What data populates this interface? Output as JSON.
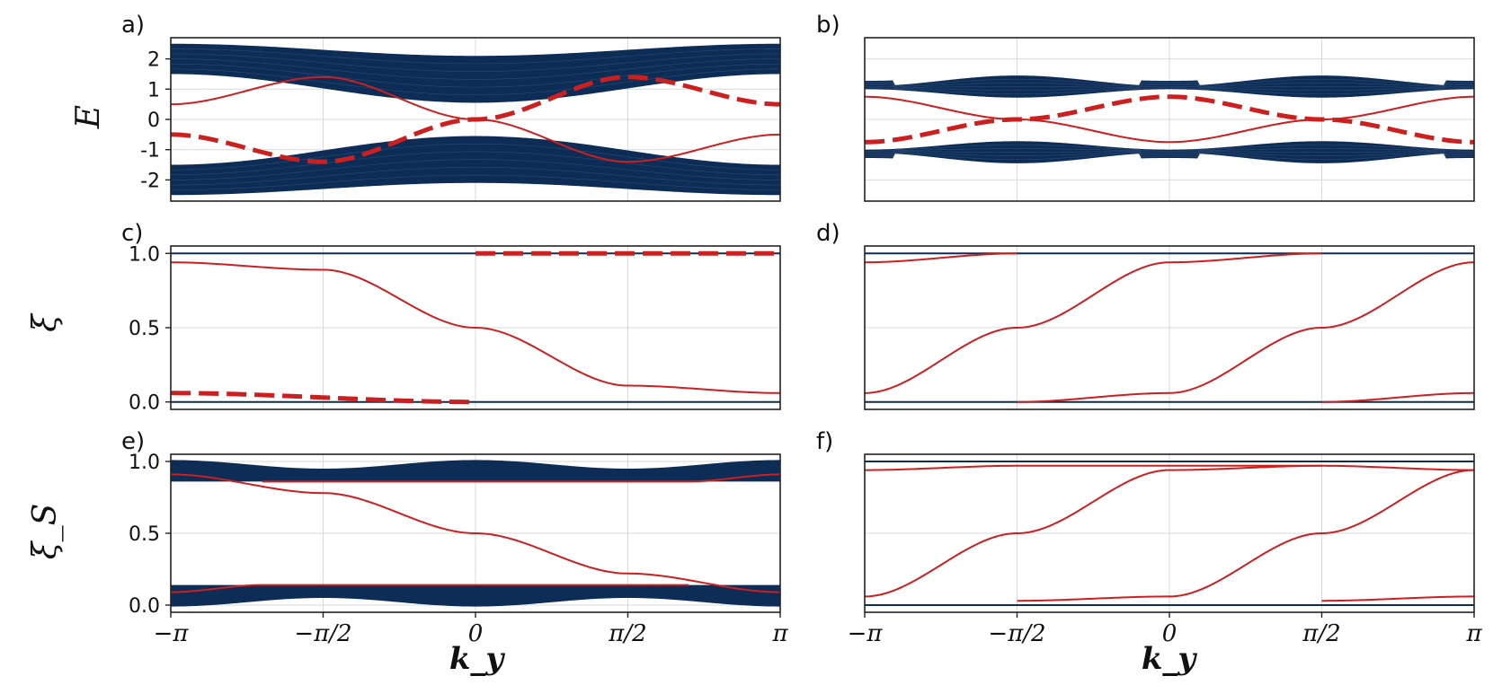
{
  "colors": {
    "bulk": "#0d2d57",
    "edge": "#cc1f1f",
    "grid": "#d9d9d9"
  },
  "xlabel": "k_y",
  "x_tick_labels": [
    "−π",
    "−π/2",
    "0",
    "π/2",
    "π"
  ],
  "chart_data": [
    {
      "panel": "a)",
      "type": "line",
      "ylabel": "E",
      "xlim": [
        -3.1416,
        3.1416
      ],
      "ylim": [
        -2.7,
        2.7
      ],
      "yticks": [
        -2,
        -1,
        0,
        1,
        2
      ],
      "ytick_labels": [
        "-2",
        "-1",
        "0",
        "1",
        "2"
      ],
      "series": [
        {
          "name": "bulk bands",
          "style": "band",
          "top_outer": "2.5 - 0.4*(1+cos k)/2",
          "top_inner": "0.55 + 0.95*sin^2(k/2)"
        },
        {
          "name": "edge state (solid)",
          "points": [
            [
              -3.14,
              0.5
            ],
            [
              -1.57,
              1.4
            ],
            [
              0,
              0
            ],
            [
              1.57,
              -1.4
            ],
            [
              3.14,
              -0.5
            ]
          ]
        },
        {
          "name": "edge state (dashed)",
          "points": [
            [
              -3.14,
              -0.5
            ],
            [
              -1.57,
              -1.4
            ],
            [
              0,
              0
            ],
            [
              1.57,
              1.4
            ],
            [
              3.14,
              0.5
            ]
          ]
        }
      ]
    },
    {
      "panel": "b)",
      "type": "line",
      "ylabel": "",
      "xlim": [
        -3.1416,
        3.1416
      ],
      "ylim": [
        -2.7,
        2.7
      ],
      "yticks": [],
      "ytick_labels": [],
      "series": [
        {
          "name": "bulk bands",
          "style": "band",
          "top_outer": "1.45 - 0.35*cos^2 k",
          "top_inner": "0.7 + 0.3*cos^2 k"
        },
        {
          "name": "edge state (solid)",
          "points": [
            [
              -3.14,
              0.75
            ],
            [
              -1.57,
              0
            ],
            [
              0,
              -0.75
            ],
            [
              1.57,
              0
            ],
            [
              3.14,
              0.75
            ]
          ]
        },
        {
          "name": "edge state (dashed)",
          "points": [
            [
              -3.14,
              -0.75
            ],
            [
              -1.57,
              0
            ],
            [
              0,
              0.75
            ],
            [
              1.57,
              0
            ],
            [
              3.14,
              -0.75
            ]
          ]
        }
      ]
    },
    {
      "panel": "c)",
      "type": "line",
      "ylabel": "ξ",
      "xlim": [
        -3.1416,
        3.1416
      ],
      "ylim": [
        -0.05,
        1.05
      ],
      "yticks": [
        0,
        0.5,
        1
      ],
      "ytick_labels": [
        "0.0",
        "0.5",
        "1.0"
      ],
      "series": [
        {
          "name": "bulk",
          "points": [
            [
              -3.14,
              1.0
            ],
            [
              3.14,
              1.0
            ]
          ]
        },
        {
          "name": "bulk",
          "points": [
            [
              -3.14,
              0.0
            ],
            [
              3.14,
              0.0
            ]
          ]
        },
        {
          "name": "Wannier center (solid)",
          "points": [
            [
              -3.14,
              0.94
            ],
            [
              -1.57,
              0.89
            ],
            [
              0,
              0.5
            ],
            [
              1.57,
              0.11
            ],
            [
              3.14,
              0.06
            ]
          ]
        },
        {
          "name": "Wannier center (dashed)",
          "points": [
            [
              0,
              1.0
            ],
            [
              3.14,
              1.0
            ]
          ]
        },
        {
          "name": "Wannier center (dashed)",
          "points": [
            [
              -3.14,
              0.06
            ],
            [
              0,
              0.0
            ]
          ]
        }
      ]
    },
    {
      "panel": "d)",
      "type": "line",
      "ylabel": "",
      "xlim": [
        -3.1416,
        3.1416
      ],
      "ylim": [
        -0.05,
        1.05
      ],
      "yticks": [],
      "ytick_labels": [],
      "series": [
        {
          "name": "bulk",
          "points": [
            [
              -3.14,
              1.0
            ],
            [
              3.14,
              1.0
            ]
          ]
        },
        {
          "name": "bulk",
          "points": [
            [
              -3.14,
              0.0
            ],
            [
              3.14,
              0.0
            ]
          ]
        },
        {
          "name": "Wannier center (solid)",
          "points": [
            [
              -3.14,
              0.94
            ],
            [
              -1.57,
              1.0
            ]
          ]
        },
        {
          "name": "Wannier center (solid)",
          "points": [
            [
              -3.14,
              0.06
            ],
            [
              -1.57,
              0.5
            ],
            [
              0,
              0.94
            ],
            [
              1.57,
              1.0
            ]
          ]
        },
        {
          "name": "Wannier center (solid)",
          "points": [
            [
              -1.57,
              0.0
            ],
            [
              0,
              0.06
            ],
            [
              1.57,
              0.5
            ],
            [
              3.14,
              0.94
            ]
          ]
        },
        {
          "name": "Wannier center (solid)",
          "points": [
            [
              1.57,
              0.0
            ],
            [
              3.14,
              0.06
            ]
          ]
        }
      ]
    },
    {
      "panel": "e)",
      "type": "line",
      "ylabel": "ξ_S",
      "xlim": [
        -3.1416,
        3.1416
      ],
      "ylim": [
        -0.05,
        1.05
      ],
      "yticks": [
        0,
        0.5,
        1
      ],
      "ytick_labels": [
        "0.0",
        "0.5",
        "1.0"
      ],
      "series": [
        {
          "name": "bulk bands",
          "style": "band",
          "lower": [
            0.02,
            0.14
          ],
          "upper": [
            0.86,
            0.98
          ]
        },
        {
          "name": "edge (solid)",
          "points": [
            [
              -3.14,
              0.91
            ],
            [
              -1.57,
              0.78
            ],
            [
              0,
              0.5
            ],
            [
              1.57,
              0.22
            ],
            [
              3.14,
              0.09
            ]
          ]
        },
        {
          "name": "edge (solid)",
          "points": [
            [
              -3.14,
              0.09
            ],
            [
              -2.2,
              0.14
            ],
            [
              2.2,
              0.14
            ]
          ]
        },
        {
          "name": "edge (solid)",
          "points": [
            [
              -2.2,
              0.86
            ],
            [
              2.2,
              0.86
            ],
            [
              3.14,
              0.91
            ]
          ]
        }
      ]
    },
    {
      "panel": "f)",
      "type": "line",
      "ylabel": "",
      "xlim": [
        -3.1416,
        3.1416
      ],
      "ylim": [
        -0.05,
        1.05
      ],
      "yticks": [],
      "ytick_labels": [],
      "series": [
        {
          "name": "bulk",
          "points": [
            [
              -3.14,
              1.0
            ],
            [
              3.14,
              1.0
            ]
          ]
        },
        {
          "name": "bulk",
          "points": [
            [
              -3.14,
              0.0
            ],
            [
              3.14,
              0.0
            ]
          ]
        },
        {
          "name": "edge (solid)",
          "points": [
            [
              -3.14,
              0.94
            ],
            [
              -1.57,
              0.97
            ],
            [
              1.57,
              0.97
            ],
            [
              3.14,
              0.94
            ]
          ]
        },
        {
          "name": "edge (solid)",
          "points": [
            [
              -3.14,
              0.06
            ],
            [
              -1.57,
              0.5
            ],
            [
              0,
              0.94
            ],
            [
              1.57,
              0.97
            ]
          ]
        },
        {
          "name": "edge (solid)",
          "points": [
            [
              -1.57,
              0.03
            ],
            [
              0,
              0.06
            ],
            [
              1.57,
              0.5
            ],
            [
              3.14,
              0.94
            ]
          ]
        },
        {
          "name": "edge (solid)",
          "points": [
            [
              1.57,
              0.03
            ],
            [
              3.14,
              0.06
            ]
          ]
        }
      ]
    }
  ]
}
